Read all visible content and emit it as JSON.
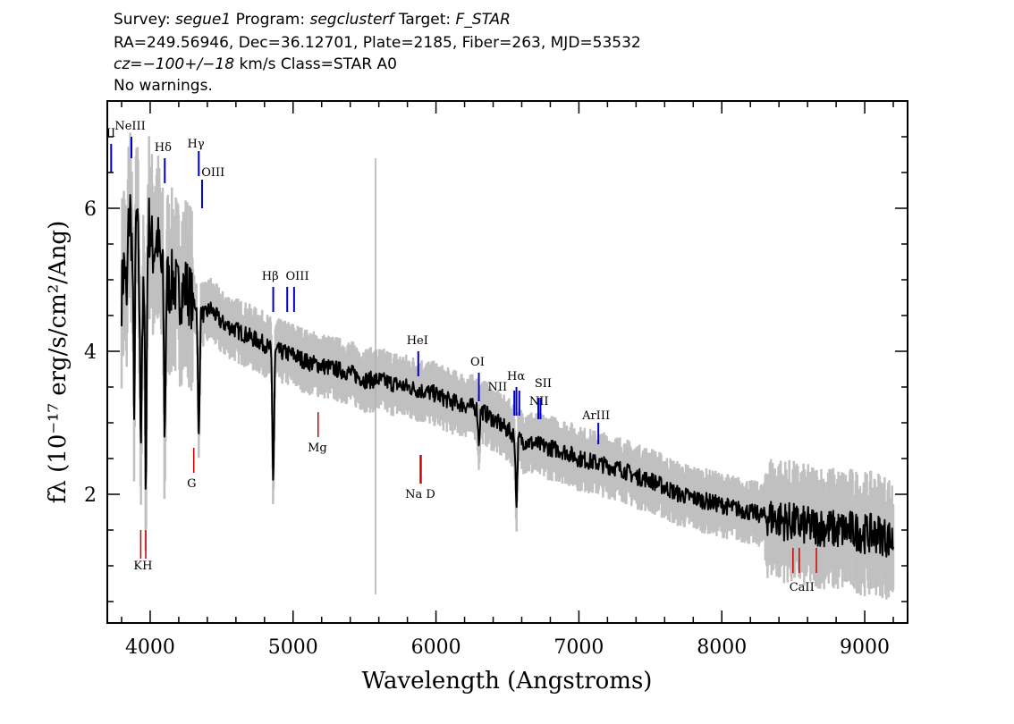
{
  "header": {
    "line1": {
      "survey_label": "Survey:",
      "survey": "segue1",
      "program_label": "Program:",
      "program": "segclusterf",
      "target_label": "Target:",
      "target": "F_STAR"
    },
    "line2": "RA=249.56946, Dec=36.12701, Plate=2185, Fiber=263, MJD=53532",
    "line3": {
      "cz": "cz=−100+/−18",
      "rest": " km/s Class=STAR A0"
    },
    "line4": "No warnings."
  },
  "chart_data": {
    "type": "line",
    "xlabel": "Wavelength (Angstroms)",
    "ylabel": "fλ (10⁻¹⁷ erg/s/cm²/Ang)",
    "xlim": [
      3700,
      9300
    ],
    "ylim": [
      0.2,
      7.5
    ],
    "xticks": [
      4000,
      5000,
      6000,
      7000,
      8000,
      9000
    ],
    "yticks": [
      2,
      4,
      6
    ],
    "series": [
      {
        "role": "flux",
        "color": "#000000",
        "x": [
          3800,
          3830,
          3860,
          3880,
          3900,
          3920,
          3950,
          3970,
          3990,
          4020,
          4050,
          4080,
          4100,
          4130,
          4160,
          4200,
          4250,
          4300,
          4340,
          4380,
          4420,
          4460,
          4500,
          4600,
          4700,
          4800,
          4861,
          4900,
          5000,
          5100,
          5200,
          5300,
          5400,
          5500,
          5600,
          5700,
          5800,
          5900,
          6000,
          6100,
          6200,
          6300,
          6400,
          6500,
          6563,
          6600,
          6700,
          6800,
          6900,
          7000,
          7100,
          7200,
          7300,
          7400,
          7500,
          7600,
          7700,
          7800,
          7900,
          8000,
          8100,
          8200,
          8300,
          8400,
          8500,
          8600,
          8700,
          8800,
          8900,
          9000,
          9100,
          9200
        ],
        "y": [
          4.8,
          5.5,
          6.0,
          5.2,
          6.1,
          5.3,
          4.6,
          5.6,
          5.8,
          5.4,
          5.6,
          5.1,
          5.3,
          4.9,
          5.0,
          4.8,
          4.9,
          4.7,
          4.6,
          4.5,
          4.6,
          4.5,
          4.4,
          4.3,
          4.2,
          4.1,
          4.0,
          4.0,
          3.95,
          3.85,
          3.8,
          3.75,
          3.7,
          3.6,
          3.6,
          3.55,
          3.5,
          3.45,
          3.4,
          3.3,
          3.25,
          3.2,
          3.05,
          2.9,
          2.8,
          2.75,
          2.7,
          2.65,
          2.6,
          2.5,
          2.45,
          2.4,
          2.35,
          2.25,
          2.2,
          2.1,
          2.0,
          1.95,
          1.9,
          1.85,
          1.8,
          1.75,
          1.7,
          1.65,
          1.6,
          1.55,
          1.55,
          1.5,
          1.5,
          1.45,
          1.45,
          1.35
        ]
      },
      {
        "role": "error",
        "color": "#c0c0c0"
      }
    ],
    "absorption": [
      {
        "x": 3835,
        "depth": 1.0
      },
      {
        "x": 3889,
        "depth": 2.2
      },
      {
        "x": 3934,
        "depth": 2.0
      },
      {
        "x": 3970,
        "depth": 3.2
      },
      {
        "x": 4102,
        "depth": 2.4
      },
      {
        "x": 4340,
        "depth": 1.8
      },
      {
        "x": 4861,
        "depth": 1.8
      },
      {
        "x": 6300,
        "depth": 0.45
      },
      {
        "x": 6563,
        "depth": 0.9
      }
    ],
    "emission_lines": [
      {
        "label": "II",
        "x": 3727,
        "y_top": 6.9,
        "y_bottom": 6.5
      },
      {
        "label": "NeIII",
        "x": 3869,
        "y_top": 7.0,
        "y_bottom": 6.7
      },
      {
        "label": "Hδ",
        "x": 4102,
        "y_top": 6.7,
        "y_bottom": 6.35
      },
      {
        "label": "Hγ",
        "x": 4340,
        "y_top": 6.8,
        "y_bottom": 6.45
      },
      {
        "label": "OIII",
        "x": 4363,
        "y_top": 6.4,
        "y_bottom": 6.0
      },
      {
        "label": "Hβ",
        "x": 4861,
        "y_top": 4.9,
        "y_bottom": 4.55
      },
      {
        "label": "OIII",
        "x": 4959,
        "y_top": 4.9,
        "y_bottom": 4.55
      },
      {
        "label": "OIII",
        "x": 5007,
        "y_top": 4.9,
        "y_bottom": 4.55
      },
      {
        "label": "HeI",
        "x": 5876,
        "y_top": 4.0,
        "y_bottom": 3.65
      },
      {
        "label": "OI",
        "x": 6300,
        "y_top": 3.7,
        "y_bottom": 3.3
      },
      {
        "label": "NII",
        "x": 6548,
        "y_top": 3.45,
        "y_bottom": 3.1
      },
      {
        "label": "Hα",
        "x": 6563,
        "y_top": 3.5,
        "y_bottom": 3.1
      },
      {
        "label": "NII",
        "x": 6583,
        "y_top": 3.45,
        "y_bottom": 3.1
      },
      {
        "label": "SII",
        "x": 6716,
        "y_top": 3.35,
        "y_bottom": 3.05
      },
      {
        "label": "SII",
        "x": 6731,
        "y_top": 3.35,
        "y_bottom": 3.05
      },
      {
        "label": "ArIII",
        "x": 7136,
        "y_top": 3.0,
        "y_bottom": 2.7
      }
    ],
    "absorption_lines": [
      {
        "label": "K",
        "x": 3934,
        "y_top": 1.5,
        "y_bottom": 1.1
      },
      {
        "label": "H",
        "x": 3969,
        "y_top": 1.5,
        "y_bottom": 1.1
      },
      {
        "label": "G",
        "x": 4305,
        "y_top": 2.65,
        "y_bottom": 2.3
      },
      {
        "label": "Mg",
        "x": 5175,
        "y_top": 3.15,
        "y_bottom": 2.8
      },
      {
        "label": "Na",
        "x": 5890,
        "y_top": 2.55,
        "y_bottom": 2.15
      },
      {
        "label": "D",
        "x": 5896,
        "y_top": 2.55,
        "y_bottom": 2.15
      },
      {
        "label": "CaII",
        "x": 8498,
        "y_top": 1.25,
        "y_bottom": 0.9
      },
      {
        "label": "CaII",
        "x": 8542,
        "y_top": 1.25,
        "y_bottom": 0.9
      },
      {
        "label": "CaII",
        "x": 8662,
        "y_top": 1.25,
        "y_bottom": 0.9
      }
    ],
    "line_label_texts": [
      {
        "text": "II",
        "x": 3725,
        "y": 7.0,
        "color": "#0000cc"
      },
      {
        "text": "NeIII",
        "x": 3860,
        "y": 7.1,
        "color": "#0000cc"
      },
      {
        "text": "Hδ",
        "x": 4090,
        "y": 6.8,
        "color": "#0000cc"
      },
      {
        "text": "Hγ",
        "x": 4320,
        "y": 6.85,
        "color": "#0000cc"
      },
      {
        "text": "OIII",
        "x": 4440,
        "y": 6.45,
        "color": "#0000cc"
      },
      {
        "text": "Hβ",
        "x": 4840,
        "y": 5.0,
        "color": "#0000cc"
      },
      {
        "text": "OIII",
        "x": 5030,
        "y": 5.0,
        "color": "#0000cc"
      },
      {
        "text": "HeI",
        "x": 5870,
        "y": 4.1,
        "color": "#0000cc"
      },
      {
        "text": "OI",
        "x": 6290,
        "y": 3.8,
        "color": "#0000cc"
      },
      {
        "text": "NII",
        "x": 6430,
        "y": 3.45,
        "color": "#0000cc"
      },
      {
        "text": "Hα",
        "x": 6560,
        "y": 3.6,
        "color": "#0000cc"
      },
      {
        "text": "SII",
        "x": 6750,
        "y": 3.5,
        "color": "#0000cc"
      },
      {
        "text": "NII",
        "x": 6720,
        "y": 3.25,
        "color": "#0000cc"
      },
      {
        "text": "ArIII",
        "x": 7120,
        "y": 3.05,
        "color": "#0000cc"
      },
      {
        "text": "KH",
        "x": 3950,
        "y": 0.95,
        "color": "#cc0000"
      },
      {
        "text": "G",
        "x": 4290,
        "y": 2.1,
        "color": "#cc0000"
      },
      {
        "text": "Mg",
        "x": 5170,
        "y": 2.6,
        "color": "#cc0000"
      },
      {
        "text": "Na  D",
        "x": 5890,
        "y": 1.95,
        "color": "#cc0000"
      },
      {
        "text": "CaII",
        "x": 8560,
        "y": 0.65,
        "color": "#cc0000"
      }
    ],
    "emission_color": "#0000cc",
    "absorption_color": "#cc0000",
    "sky_line": {
      "x": 5577,
      "y_top": 6.7,
      "y_bottom": 0.6,
      "color": "#b0b0b0"
    }
  }
}
